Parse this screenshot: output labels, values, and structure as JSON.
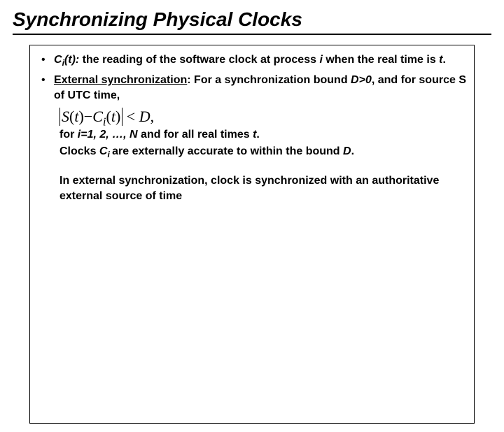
{
  "title": "Synchronizing Physical Clocks",
  "bullet1": {
    "ci": "C",
    "ci_sub": "i",
    "t": "(t): ",
    "text1": "the reading of the software clock at process ",
    "i": "i",
    "text2": " when the real time is ",
    "tvar": "t",
    "period": "."
  },
  "bullet2": {
    "label": "External synchronization",
    "text1": ": For a synchronization bound ",
    "d": "D>0",
    "text2": ", and for source S of UTC time,"
  },
  "formula": {
    "s": "S",
    "t1": "(",
    "tvar": "t",
    "t2": ")",
    "minus": "−",
    "c": "C",
    "ci_sub": "i",
    "t3": "(",
    "tvar2": "t",
    "t4": ")",
    "lt": "<",
    "d": "D",
    "comma": ","
  },
  "line3": {
    "text1": "for ",
    "i": "i=1, 2, …, N",
    "text2": " and for all real times ",
    "t": "t",
    "period": "."
  },
  "line4": {
    "text1": "Clocks ",
    "c": "C",
    "ci_sub": "i ",
    "text2": "are externally accurate to within the bound ",
    "d": "D",
    "period": "."
  },
  "para": "In external synchronization, clock is synchronized with an authoritative  external source of time"
}
